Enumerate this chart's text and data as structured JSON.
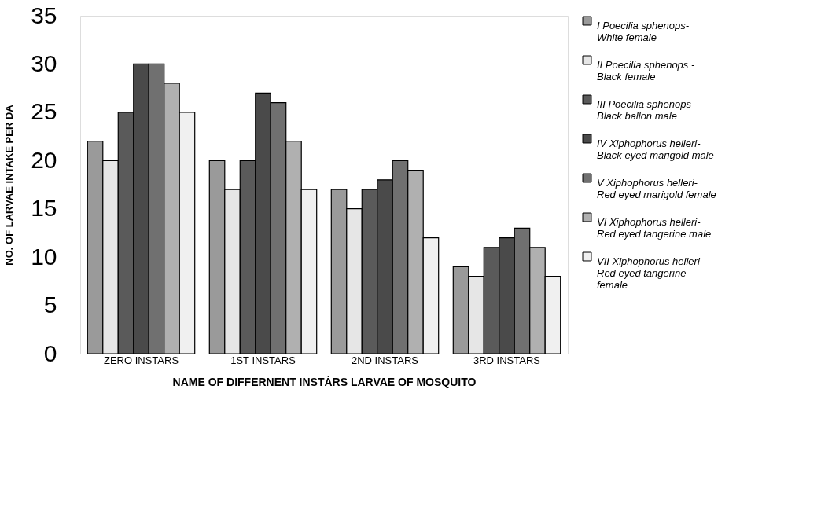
{
  "chart_data": {
    "type": "bar",
    "xlabel": "NAME OF DIFFERNENT INSTÁRS LARVAE OF MOSQUITO",
    "ylabel": "NO. OF LARVAE INTAKE PER DA",
    "categories": [
      "ZERO INSTARS",
      "1ST INSTARS",
      "2ND INSTARS",
      "3RD INSTARS"
    ],
    "series": [
      {
        "name": "I Poecilia sphenops- White female",
        "color": "#9a9a9a",
        "values": [
          22,
          20,
          17,
          9
        ]
      },
      {
        "name": "II Poecilia sphenops - Black female",
        "color": "#e6e6e6",
        "values": [
          20,
          17,
          15,
          8
        ]
      },
      {
        "name": "III Poecilia sphenops - Black ballon male",
        "color": "#5a5a5a",
        "values": [
          25,
          20,
          17,
          11
        ]
      },
      {
        "name": "IV Xiphophorus helleri- Black eyed marigold male",
        "color": "#4a4a4a",
        "values": [
          30,
          27,
          18,
          12
        ]
      },
      {
        "name": "V Xiphophorus helleri- Red eyed marigold female",
        "color": "#707070",
        "values": [
          30,
          26,
          20,
          13
        ]
      },
      {
        "name": "VI Xiphophorus helleri- Red eyed tangerine male",
        "color": "#b0b0b0",
        "values": [
          28,
          22,
          19,
          11
        ]
      },
      {
        "name": "VII Xiphophorus helleri- Red eyed tangerine female",
        "color": "#f0f0f0",
        "values": [
          25,
          17,
          12,
          8
        ]
      }
    ],
    "ylim": [
      0,
      35
    ],
    "yticks": [
      0,
      5,
      10,
      15,
      20,
      25,
      30,
      35
    ],
    "grid": false,
    "legend": "right"
  }
}
